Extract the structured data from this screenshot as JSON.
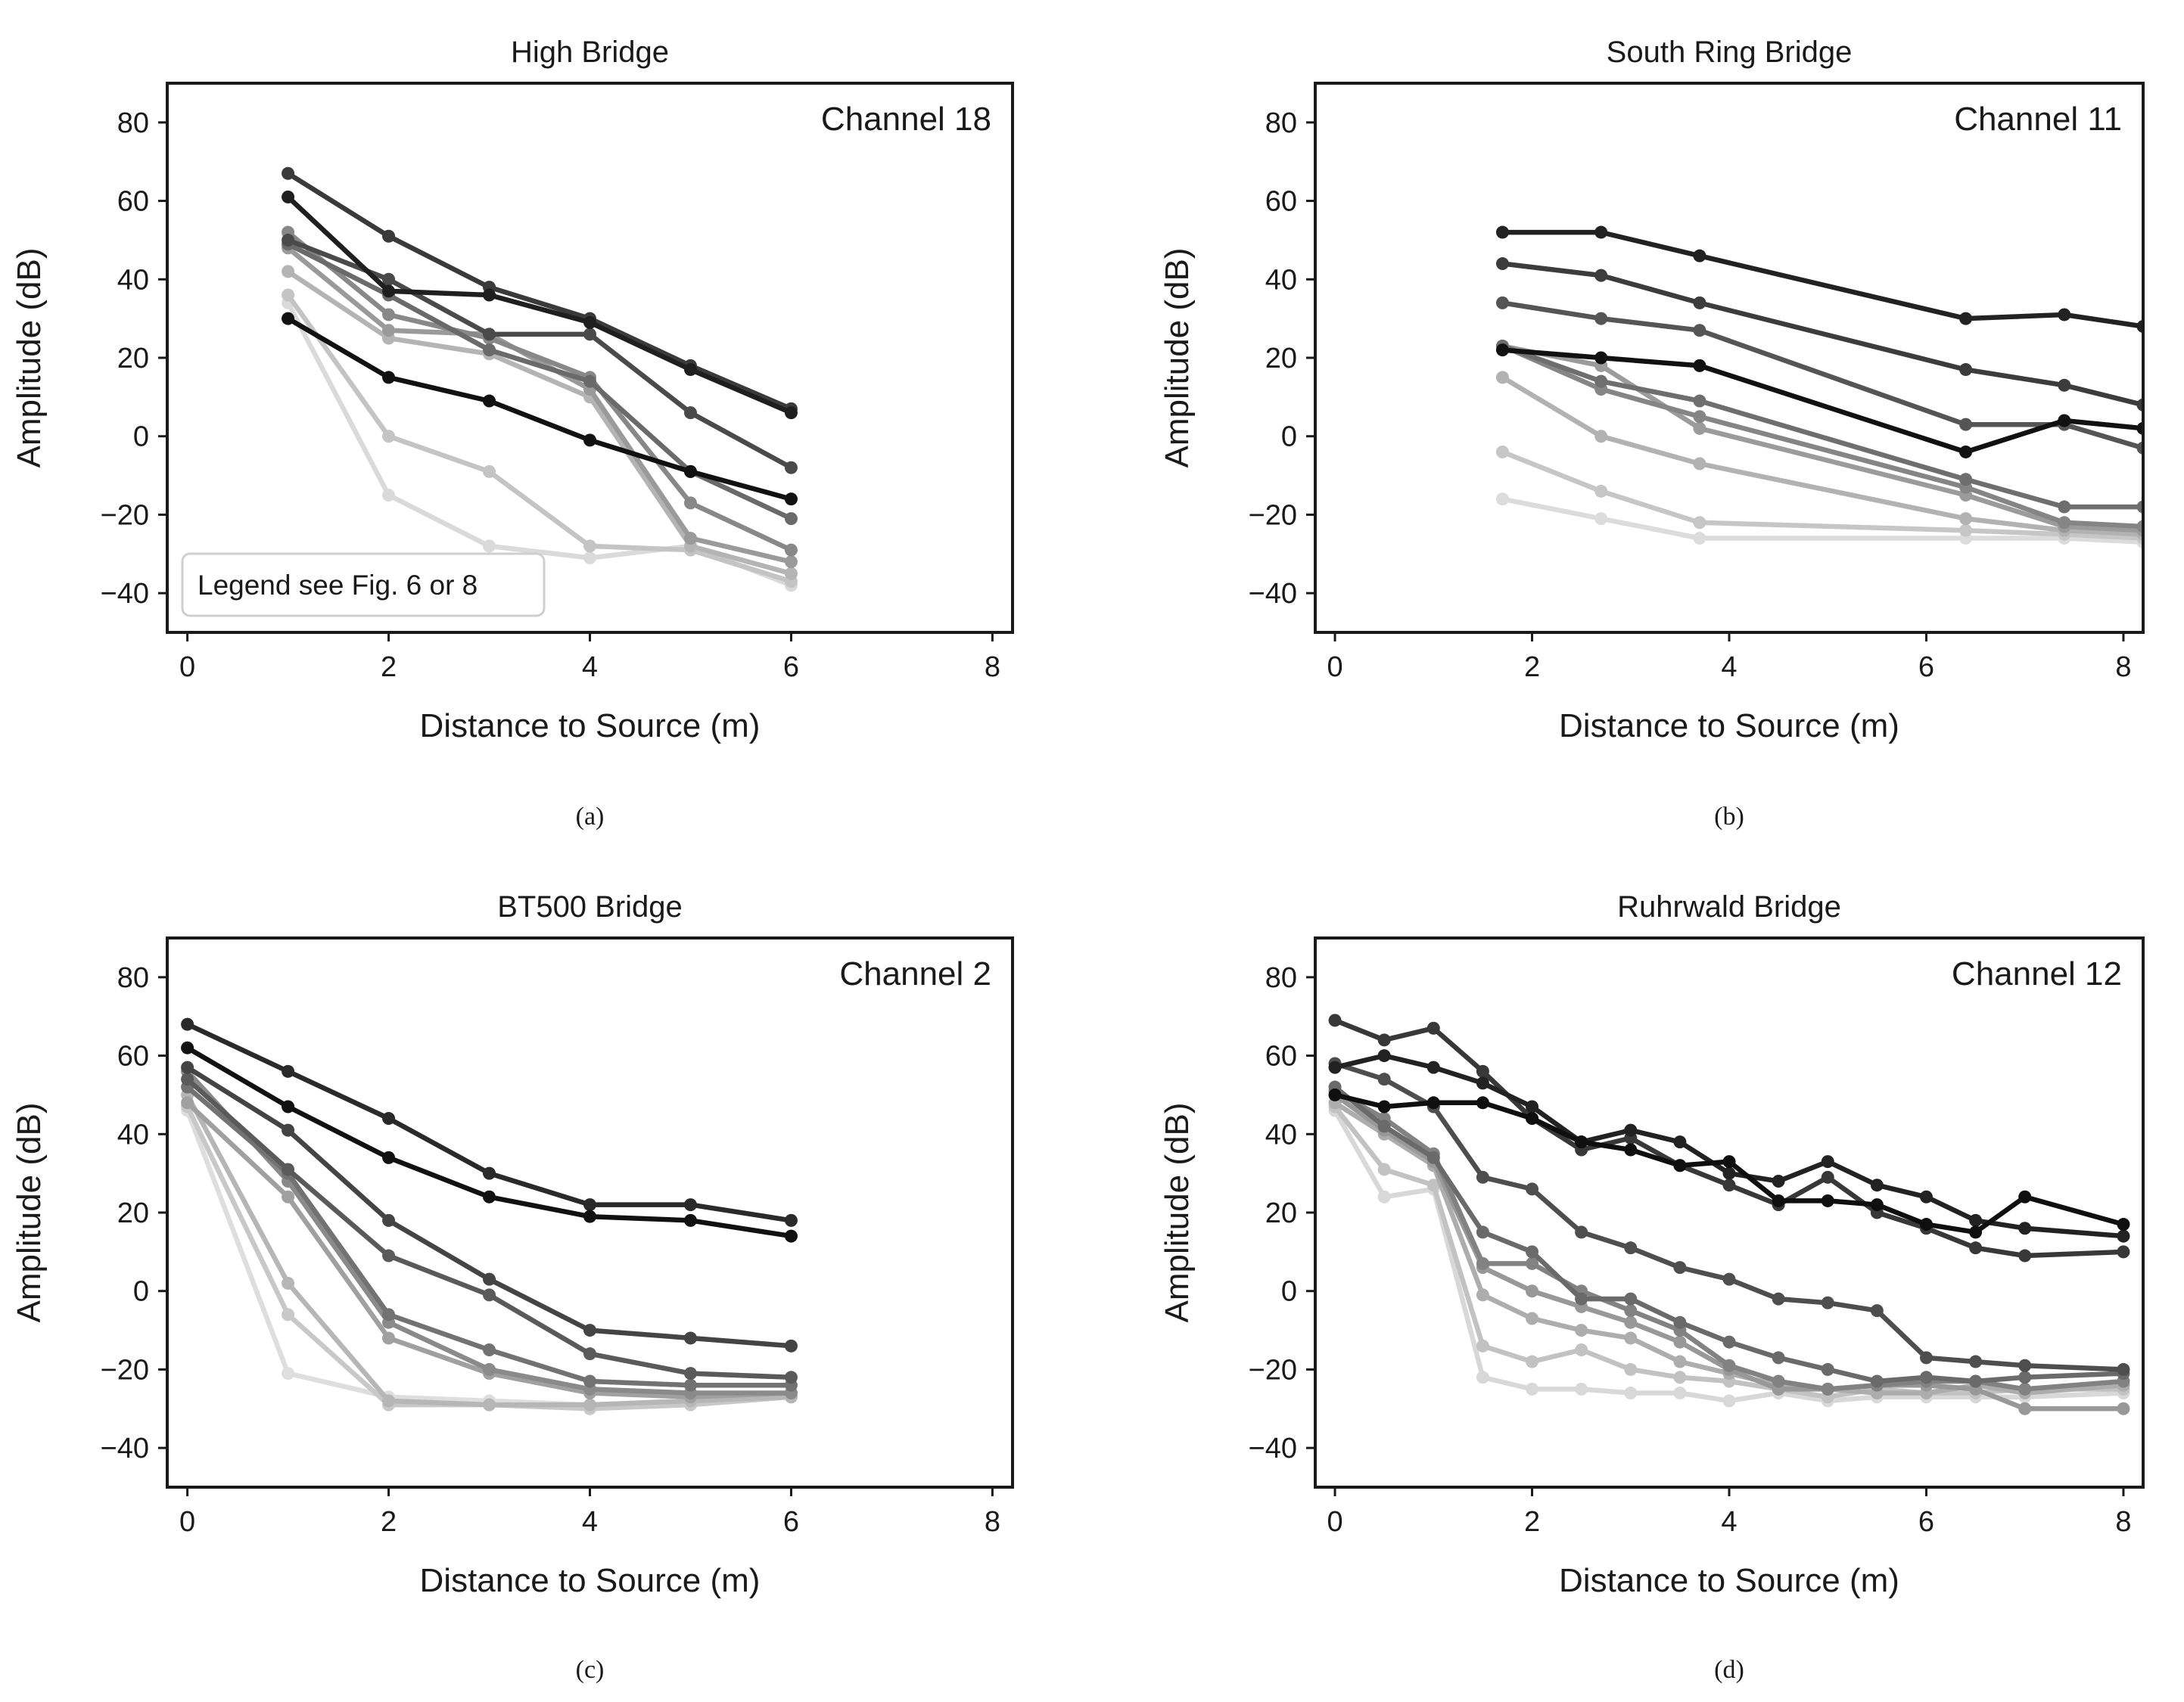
{
  "chart_data": [
    {
      "type": "line",
      "title": "High Bridge",
      "channel_label": "Channel 18",
      "legend_note": "Legend see Fig. 6 or 8",
      "caption": "(a)",
      "xlabel": "Distance to Source (m)",
      "ylabel": "Amplitude (dB)",
      "xlim": [
        -0.2,
        8.2
      ],
      "ylim": [
        -50,
        90
      ],
      "xticks": [
        0,
        2,
        4,
        6,
        8
      ],
      "yticks": [
        -40,
        -20,
        0,
        20,
        40,
        60,
        80
      ],
      "x": [
        1,
        2,
        3,
        4,
        5,
        6
      ],
      "series": [
        {
          "name": "s1",
          "color": "#111111",
          "values": [
            30,
            15,
            9,
            -1,
            -9,
            -16
          ]
        },
        {
          "name": "s2",
          "color": "#1f1f1f",
          "values": [
            61,
            37,
            36,
            29,
            17,
            6
          ]
        },
        {
          "name": "s3",
          "color": "#3a3a3a",
          "values": [
            67,
            51,
            38,
            30,
            18,
            7
          ]
        },
        {
          "name": "s4",
          "color": "#4a4a4a",
          "values": [
            50,
            40,
            26,
            26,
            6,
            -8
          ]
        },
        {
          "name": "s5",
          "color": "#6a6a6a",
          "values": [
            49,
            36,
            22,
            14,
            -9,
            -21
          ]
        },
        {
          "name": "s6",
          "color": "#888888",
          "values": [
            52,
            31,
            25,
            15,
            -17,
            -29
          ]
        },
        {
          "name": "s7",
          "color": "#9a9a9a",
          "values": [
            48,
            27,
            26,
            12,
            -26,
            -32
          ]
        },
        {
          "name": "s8",
          "color": "#b4b4b4",
          "values": [
            42,
            25,
            21,
            10,
            -28,
            -35
          ]
        },
        {
          "name": "s9",
          "color": "#c4c4c4",
          "values": [
            36,
            0,
            -9,
            -28,
            -29,
            -37
          ]
        },
        {
          "name": "s10",
          "color": "#dadada",
          "values": [
            34,
            -15,
            -28,
            -31,
            -28,
            -38
          ]
        }
      ]
    },
    {
      "type": "line",
      "title": "South Ring Bridge",
      "channel_label": "Channel 11",
      "caption": "(b)",
      "xlabel": "Distance to Source (m)",
      "ylabel": "Amplitude (dB)",
      "xlim": [
        -0.2,
        8.2
      ],
      "ylim": [
        -50,
        90
      ],
      "xticks": [
        0,
        2,
        4,
        6,
        8
      ],
      "yticks": [
        -40,
        -20,
        0,
        20,
        40,
        60,
        80
      ],
      "x": [
        1.7,
        2.7,
        3.7,
        6.4,
        7.4,
        8.2
      ],
      "series": [
        {
          "name": "s1",
          "color": "#111111",
          "values": [
            22,
            20,
            18,
            -4,
            4,
            2
          ]
        },
        {
          "name": "s2",
          "color": "#222222",
          "values": [
            52,
            52,
            46,
            30,
            31,
            28
          ]
        },
        {
          "name": "s3",
          "color": "#3c3c3c",
          "values": [
            44,
            41,
            34,
            17,
            13,
            8
          ]
        },
        {
          "name": "s4",
          "color": "#555555",
          "values": [
            34,
            30,
            27,
            3,
            3,
            -3
          ]
        },
        {
          "name": "s5",
          "color": "#6e6e6e",
          "values": [
            23,
            14,
            9,
            -11,
            -18,
            -18
          ]
        },
        {
          "name": "s6",
          "color": "#858585",
          "values": [
            23,
            12,
            5,
            -13,
            -22,
            -23
          ]
        },
        {
          "name": "s7",
          "color": "#9b9b9b",
          "values": [
            23,
            18,
            2,
            -15,
            -23,
            -24
          ]
        },
        {
          "name": "s8",
          "color": "#b2b2b2",
          "values": [
            15,
            0,
            -7,
            -21,
            -24,
            -25
          ]
        },
        {
          "name": "s9",
          "color": "#c6c6c6",
          "values": [
            -4,
            -14,
            -22,
            -24,
            -25,
            -26
          ]
        },
        {
          "name": "s10",
          "color": "#dcdcdc",
          "values": [
            -16,
            -21,
            -26,
            -26,
            -26,
            -27
          ]
        }
      ]
    },
    {
      "type": "line",
      "title": "BT500 Bridge",
      "channel_label": "Channel 2",
      "caption": "(c)",
      "xlabel": "Distance to Source (m)",
      "ylabel": "Amplitude (dB)",
      "xlim": [
        -0.2,
        8.2
      ],
      "ylim": [
        -50,
        90
      ],
      "xticks": [
        0,
        2,
        4,
        6,
        8
      ],
      "yticks": [
        -40,
        -20,
        0,
        20,
        40,
        60,
        80
      ],
      "x": [
        0,
        1,
        2,
        3,
        4,
        5,
        6
      ],
      "series": [
        {
          "name": "s1",
          "color": "#111111",
          "values": [
            62,
            47,
            34,
            24,
            19,
            18,
            14
          ]
        },
        {
          "name": "s2",
          "color": "#2a2a2a",
          "values": [
            68,
            56,
            44,
            30,
            22,
            22,
            18
          ]
        },
        {
          "name": "s3",
          "color": "#444444",
          "values": [
            57,
            41,
            18,
            3,
            -10,
            -12,
            -14
          ]
        },
        {
          "name": "s4",
          "color": "#5a5a5a",
          "values": [
            54,
            31,
            9,
            -1,
            -16,
            -21,
            -22
          ]
        },
        {
          "name": "s5",
          "color": "#727272",
          "values": [
            52,
            30,
            -6,
            -15,
            -23,
            -24,
            -24
          ]
        },
        {
          "name": "s6",
          "color": "#8a8a8a",
          "values": [
            56,
            28,
            -8,
            -20,
            -25,
            -26,
            -26
          ]
        },
        {
          "name": "s7",
          "color": "#a0a0a0",
          "values": [
            48,
            24,
            -12,
            -21,
            -26,
            -27,
            -26
          ]
        },
        {
          "name": "s8",
          "color": "#b6b6b6",
          "values": [
            50,
            2,
            -28,
            -29,
            -29,
            -28,
            -27
          ]
        },
        {
          "name": "s9",
          "color": "#c8c8c8",
          "values": [
            47,
            -6,
            -29,
            -29,
            -30,
            -29,
            -27
          ]
        },
        {
          "name": "s10",
          "color": "#dedede",
          "values": [
            46,
            -21,
            -27,
            -28,
            -29,
            -28,
            -27
          ]
        }
      ]
    },
    {
      "type": "line",
      "title": "Ruhrwald Bridge",
      "channel_label": "Channel 12",
      "caption": "(d)",
      "xlabel": "Distance to Source (m)",
      "ylabel": "Amplitude (dB)",
      "xlim": [
        -0.2,
        8.2
      ],
      "ylim": [
        -50,
        90
      ],
      "xticks": [
        0,
        2,
        4,
        6,
        8
      ],
      "yticks": [
        -40,
        -20,
        0,
        20,
        40,
        60,
        80
      ],
      "x": [
        0,
        0.5,
        1,
        1.5,
        2,
        2.5,
        3,
        3.5,
        4,
        4.5,
        5,
        5.5,
        6,
        6.5,
        7,
        8
      ],
      "series": [
        {
          "name": "s1",
          "color": "#0f0f0f",
          "values": [
            50,
            47,
            48,
            48,
            44,
            38,
            36,
            32,
            33,
            23,
            23,
            22,
            17,
            15,
            24,
            17
          ]
        },
        {
          "name": "s2",
          "color": "#222222",
          "values": [
            57,
            60,
            57,
            53,
            47,
            38,
            41,
            38,
            30,
            28,
            33,
            27,
            24,
            18,
            16,
            14
          ]
        },
        {
          "name": "s3",
          "color": "#383838",
          "values": [
            69,
            64,
            67,
            56,
            44,
            36,
            39,
            32,
            27,
            22,
            29,
            20,
            16,
            11,
            9,
            10
          ]
        },
        {
          "name": "s4",
          "color": "#4e4e4e",
          "values": [
            58,
            54,
            47,
            29,
            26,
            15,
            11,
            6,
            3,
            -2,
            -3,
            -5,
            -17,
            -18,
            -19,
            -20
          ]
        },
        {
          "name": "s5",
          "color": "#6a6a6a",
          "values": [
            52,
            42,
            34,
            15,
            10,
            -2,
            -2,
            -8,
            -13,
            -17,
            -20,
            -23,
            -22,
            -23,
            -22,
            -21
          ]
        },
        {
          "name": "s6",
          "color": "#828282",
          "values": [
            51,
            44,
            35,
            7,
            7,
            0,
            -5,
            -10,
            -19,
            -23,
            -25,
            -24,
            -23,
            -23,
            -25,
            -23
          ]
        },
        {
          "name": "s7",
          "color": "#989898",
          "values": [
            50,
            41,
            33,
            6,
            0,
            -4,
            -8,
            -13,
            -20,
            -25,
            -25,
            -24,
            -24,
            -25,
            -30,
            -30
          ]
        },
        {
          "name": "s8",
          "color": "#adadad",
          "values": [
            48,
            40,
            32,
            -1,
            -7,
            -10,
            -12,
            -18,
            -21,
            -24,
            -25,
            -26,
            -26,
            -24,
            -26,
            -24
          ]
        },
        {
          "name": "s9",
          "color": "#c2c2c2",
          "values": [
            47,
            31,
            27,
            -14,
            -18,
            -15,
            -20,
            -22,
            -23,
            -25,
            -27,
            -25,
            -26,
            -26,
            -25,
            -25
          ]
        },
        {
          "name": "s10",
          "color": "#d8d8d8",
          "values": [
            46,
            24,
            26,
            -22,
            -25,
            -25,
            -26,
            -26,
            -28,
            -26,
            -28,
            -27,
            -27,
            -27,
            -27,
            -26
          ]
        }
      ]
    }
  ]
}
